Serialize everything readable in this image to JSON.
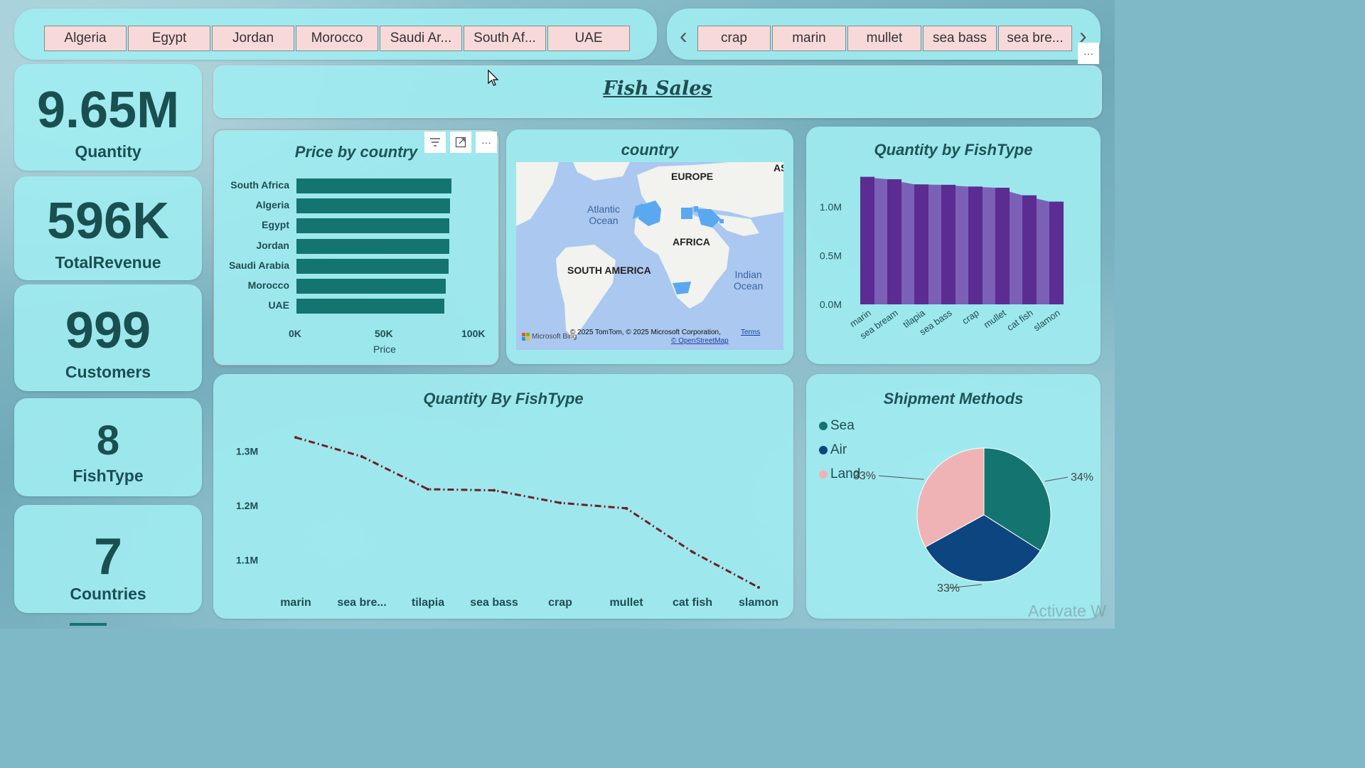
{
  "country_slicer": {
    "items": [
      "Algeria",
      "Egypt",
      "Jordan",
      "Morocco",
      "Saudi Ar...",
      "South Af...",
      "UAE"
    ]
  },
  "fish_slicer": {
    "items": [
      "crap",
      "marin",
      "mullet",
      "sea bass",
      "sea bre..."
    ],
    "prev_glyph": "‹",
    "next_glyph": "›"
  },
  "header": {
    "title": "Fish Sales"
  },
  "kpis": [
    {
      "value": "9.65M",
      "label": "Quantity"
    },
    {
      "value": "596K",
      "label": "TotalRevenue"
    },
    {
      "value": "999",
      "label": "Customers"
    },
    {
      "value": "8",
      "label": "FishType"
    },
    {
      "value": "7",
      "label": "Countries"
    }
  ],
  "map": {
    "title": "country",
    "labels": {
      "europe": "EUROPE",
      "africa": "AFRICA",
      "south_america": "SOUTH AMERICA",
      "asia_cut": "AS"
    },
    "oceans": {
      "atlantic": "Atlantic\nOcean",
      "indian": "Indian\nOcean"
    },
    "attribution": "© 2025 TomTom, © 2025 Microsoft Corporation,",
    "terms": "Terms",
    "osm": "© OpenStreetMap",
    "brand": "Microsoft Bing"
  },
  "visual_menu": {
    "more": "···"
  },
  "watermark": "Activate W",
  "colors": {
    "bar": "#137470",
    "column_dark": "#5b2c92",
    "column_light": "#7b60b8",
    "line": "#6b1f2a",
    "sea": "#137470",
    "air": "#0c4580",
    "land": "#f0b3b5"
  },
  "chart_data": [
    {
      "type": "bar",
      "title": "Price by country",
      "xlabel": "Price",
      "categories": [
        "South Africa",
        "Algeria",
        "Egypt",
        "Jordan",
        "Saudi Arabia",
        "Morocco",
        "UAE"
      ],
      "values": [
        87000,
        86500,
        86000,
        85800,
        85500,
        84000,
        83000
      ],
      "xlim": [
        0,
        100000
      ],
      "xticks": [
        "0K",
        "50K",
        "100K"
      ]
    },
    {
      "type": "bar",
      "title": "Quantity by FishType",
      "categories": [
        "marin",
        "sea bream",
        "tilapia",
        "sea bass",
        "crap",
        "mullet",
        "cat fish",
        "slamon"
      ],
      "values": [
        1310000,
        1285000,
        1232000,
        1228000,
        1210000,
        1198000,
        1120000,
        1055000
      ],
      "ylim": [
        0,
        1300000
      ],
      "yticks": [
        "0.0M",
        "0.5M",
        "1.0M"
      ]
    },
    {
      "type": "line",
      "title": "Quantity By FishType",
      "categories": [
        "marin",
        "sea bre...",
        "tilapia",
        "sea bass",
        "crap",
        "mullet",
        "cat fish",
        "slamon"
      ],
      "values": [
        1325000,
        1290000,
        1230000,
        1228000,
        1205000,
        1195000,
        1115000,
        1050000
      ],
      "ylim": [
        1050000,
        1350000
      ],
      "yticks": [
        "1.1M",
        "1.2M",
        "1.3M"
      ]
    },
    {
      "type": "pie",
      "title": "Shipment Methods",
      "categories": [
        "Sea",
        "Air",
        "Land"
      ],
      "values": [
        34,
        33,
        33
      ],
      "labels": [
        "34%",
        "33%",
        "33%"
      ],
      "legend": "left"
    }
  ]
}
